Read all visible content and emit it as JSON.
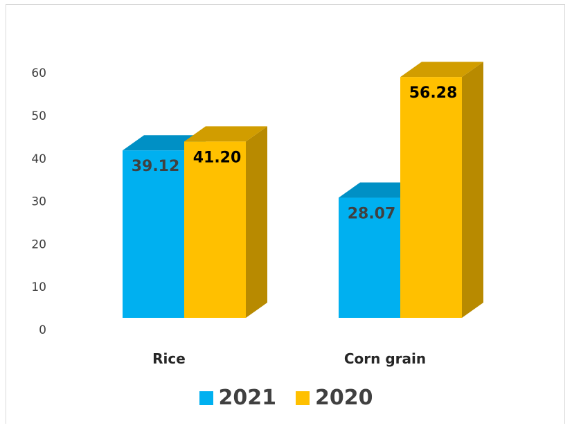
{
  "chart_data": {
    "type": "bar",
    "style": "3d-clustered-column",
    "categories": [
      "Rice",
      "Corn grain"
    ],
    "series": [
      {
        "name": "2021",
        "values": [
          39.12,
          28.07
        ],
        "labels": [
          "39.12",
          "28.07"
        ],
        "color": "#00B0F0",
        "label_color": "#404040"
      },
      {
        "name": "2020",
        "values": [
          41.2,
          56.28
        ],
        "labels": [
          "41.20",
          "56.28"
        ],
        "color": "#FFC000",
        "label_color": "#000000"
      }
    ],
    "ylim": [
      0,
      60
    ],
    "yticks": [
      "0",
      "10",
      "20",
      "30",
      "40",
      "50",
      "60"
    ],
    "grid": false,
    "legend": "bottom"
  }
}
